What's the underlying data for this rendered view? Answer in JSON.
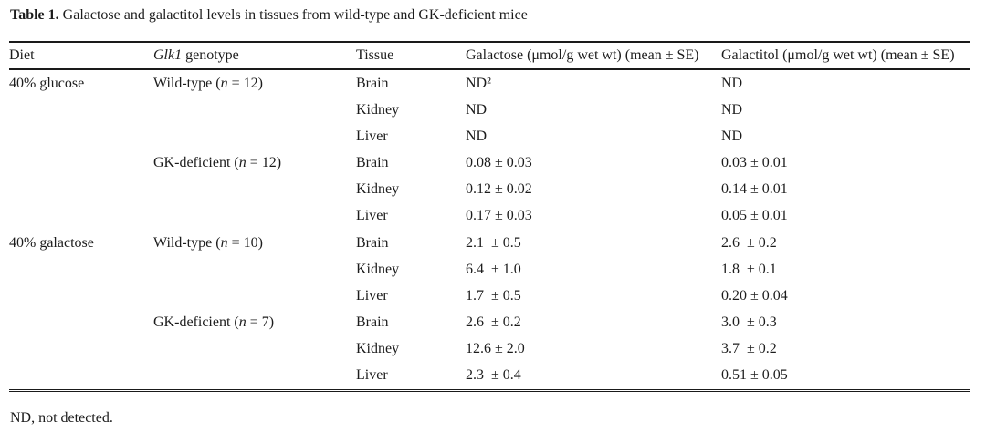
{
  "page": {
    "background": "#ffffff",
    "text_color": "#1c1c1c"
  },
  "caption": {
    "label": "Table 1.",
    "text": " Galactose and galactitol levels in tissues from wild-type and GK-deficient mice"
  },
  "table": {
    "headers": {
      "diet": "Diet",
      "genotype": {
        "gene": "Glk1",
        "rest": " genotype"
      },
      "tissue": "Tissue",
      "galactose": "Galactose (μmol/g wet wt) (mean ± SE)",
      "galactitol": "Galactitol (μmol/g wet wt) (mean ± SE)"
    },
    "rows": [
      {
        "diet": "40% glucose",
        "genotype": {
          "prefix": "Wild-type (",
          "var": "n",
          "suffix": " = 12)"
        },
        "tissue": "Brain",
        "galactose": "ND²",
        "galactitol": "ND"
      },
      {
        "diet": "",
        "genotype": {
          "prefix": "",
          "var": "",
          "suffix": ""
        },
        "tissue": "Kidney",
        "galactose": "ND",
        "galactitol": "ND"
      },
      {
        "diet": "",
        "genotype": {
          "prefix": "",
          "var": "",
          "suffix": ""
        },
        "tissue": "Liver",
        "galactose": "ND",
        "galactitol": "ND"
      },
      {
        "diet": "",
        "genotype": {
          "prefix": "GK-deficient (",
          "var": "n",
          "suffix": " = 12)"
        },
        "tissue": "Brain",
        "galactose": "0.08 ± 0.03",
        "galactitol": "0.03 ± 0.01"
      },
      {
        "diet": "",
        "genotype": {
          "prefix": "",
          "var": "",
          "suffix": ""
        },
        "tissue": "Kidney",
        "galactose": "0.12 ± 0.02",
        "galactitol": "0.14 ± 0.01"
      },
      {
        "diet": "",
        "genotype": {
          "prefix": "",
          "var": "",
          "suffix": ""
        },
        "tissue": "Liver",
        "galactose": "0.17 ± 0.03",
        "galactitol": "0.05 ± 0.01"
      },
      {
        "diet": "40% galactose",
        "genotype": {
          "prefix": "Wild-type (",
          "var": "n",
          "suffix": " = 10)"
        },
        "tissue": "Brain",
        "galactose": "2.1  ± 0.5",
        "galactitol": "2.6  ± 0.2"
      },
      {
        "diet": "",
        "genotype": {
          "prefix": "",
          "var": "",
          "suffix": ""
        },
        "tissue": "Kidney",
        "galactose": "6.4  ± 1.0",
        "galactitol": "1.8  ± 0.1"
      },
      {
        "diet": "",
        "genotype": {
          "prefix": "",
          "var": "",
          "suffix": ""
        },
        "tissue": "Liver",
        "galactose": "1.7  ± 0.5",
        "galactitol": "0.20 ± 0.04"
      },
      {
        "diet": "",
        "genotype": {
          "prefix": "GK-deficient (",
          "var": "n",
          "suffix": " = 7)"
        },
        "tissue": "Brain",
        "galactose": "2.6  ± 0.2",
        "galactitol": "3.0  ± 0.3"
      },
      {
        "diet": "",
        "genotype": {
          "prefix": "",
          "var": "",
          "suffix": ""
        },
        "tissue": "Kidney",
        "galactose": "12.6 ± 2.0",
        "galactitol": "3.7  ± 0.2"
      },
      {
        "diet": "",
        "genotype": {
          "prefix": "",
          "var": "",
          "suffix": ""
        },
        "tissue": "Liver",
        "galactose": "2.3  ± 0.4",
        "galactitol": "0.51 ± 0.05"
      }
    ]
  },
  "footnote": "ND, not detected."
}
